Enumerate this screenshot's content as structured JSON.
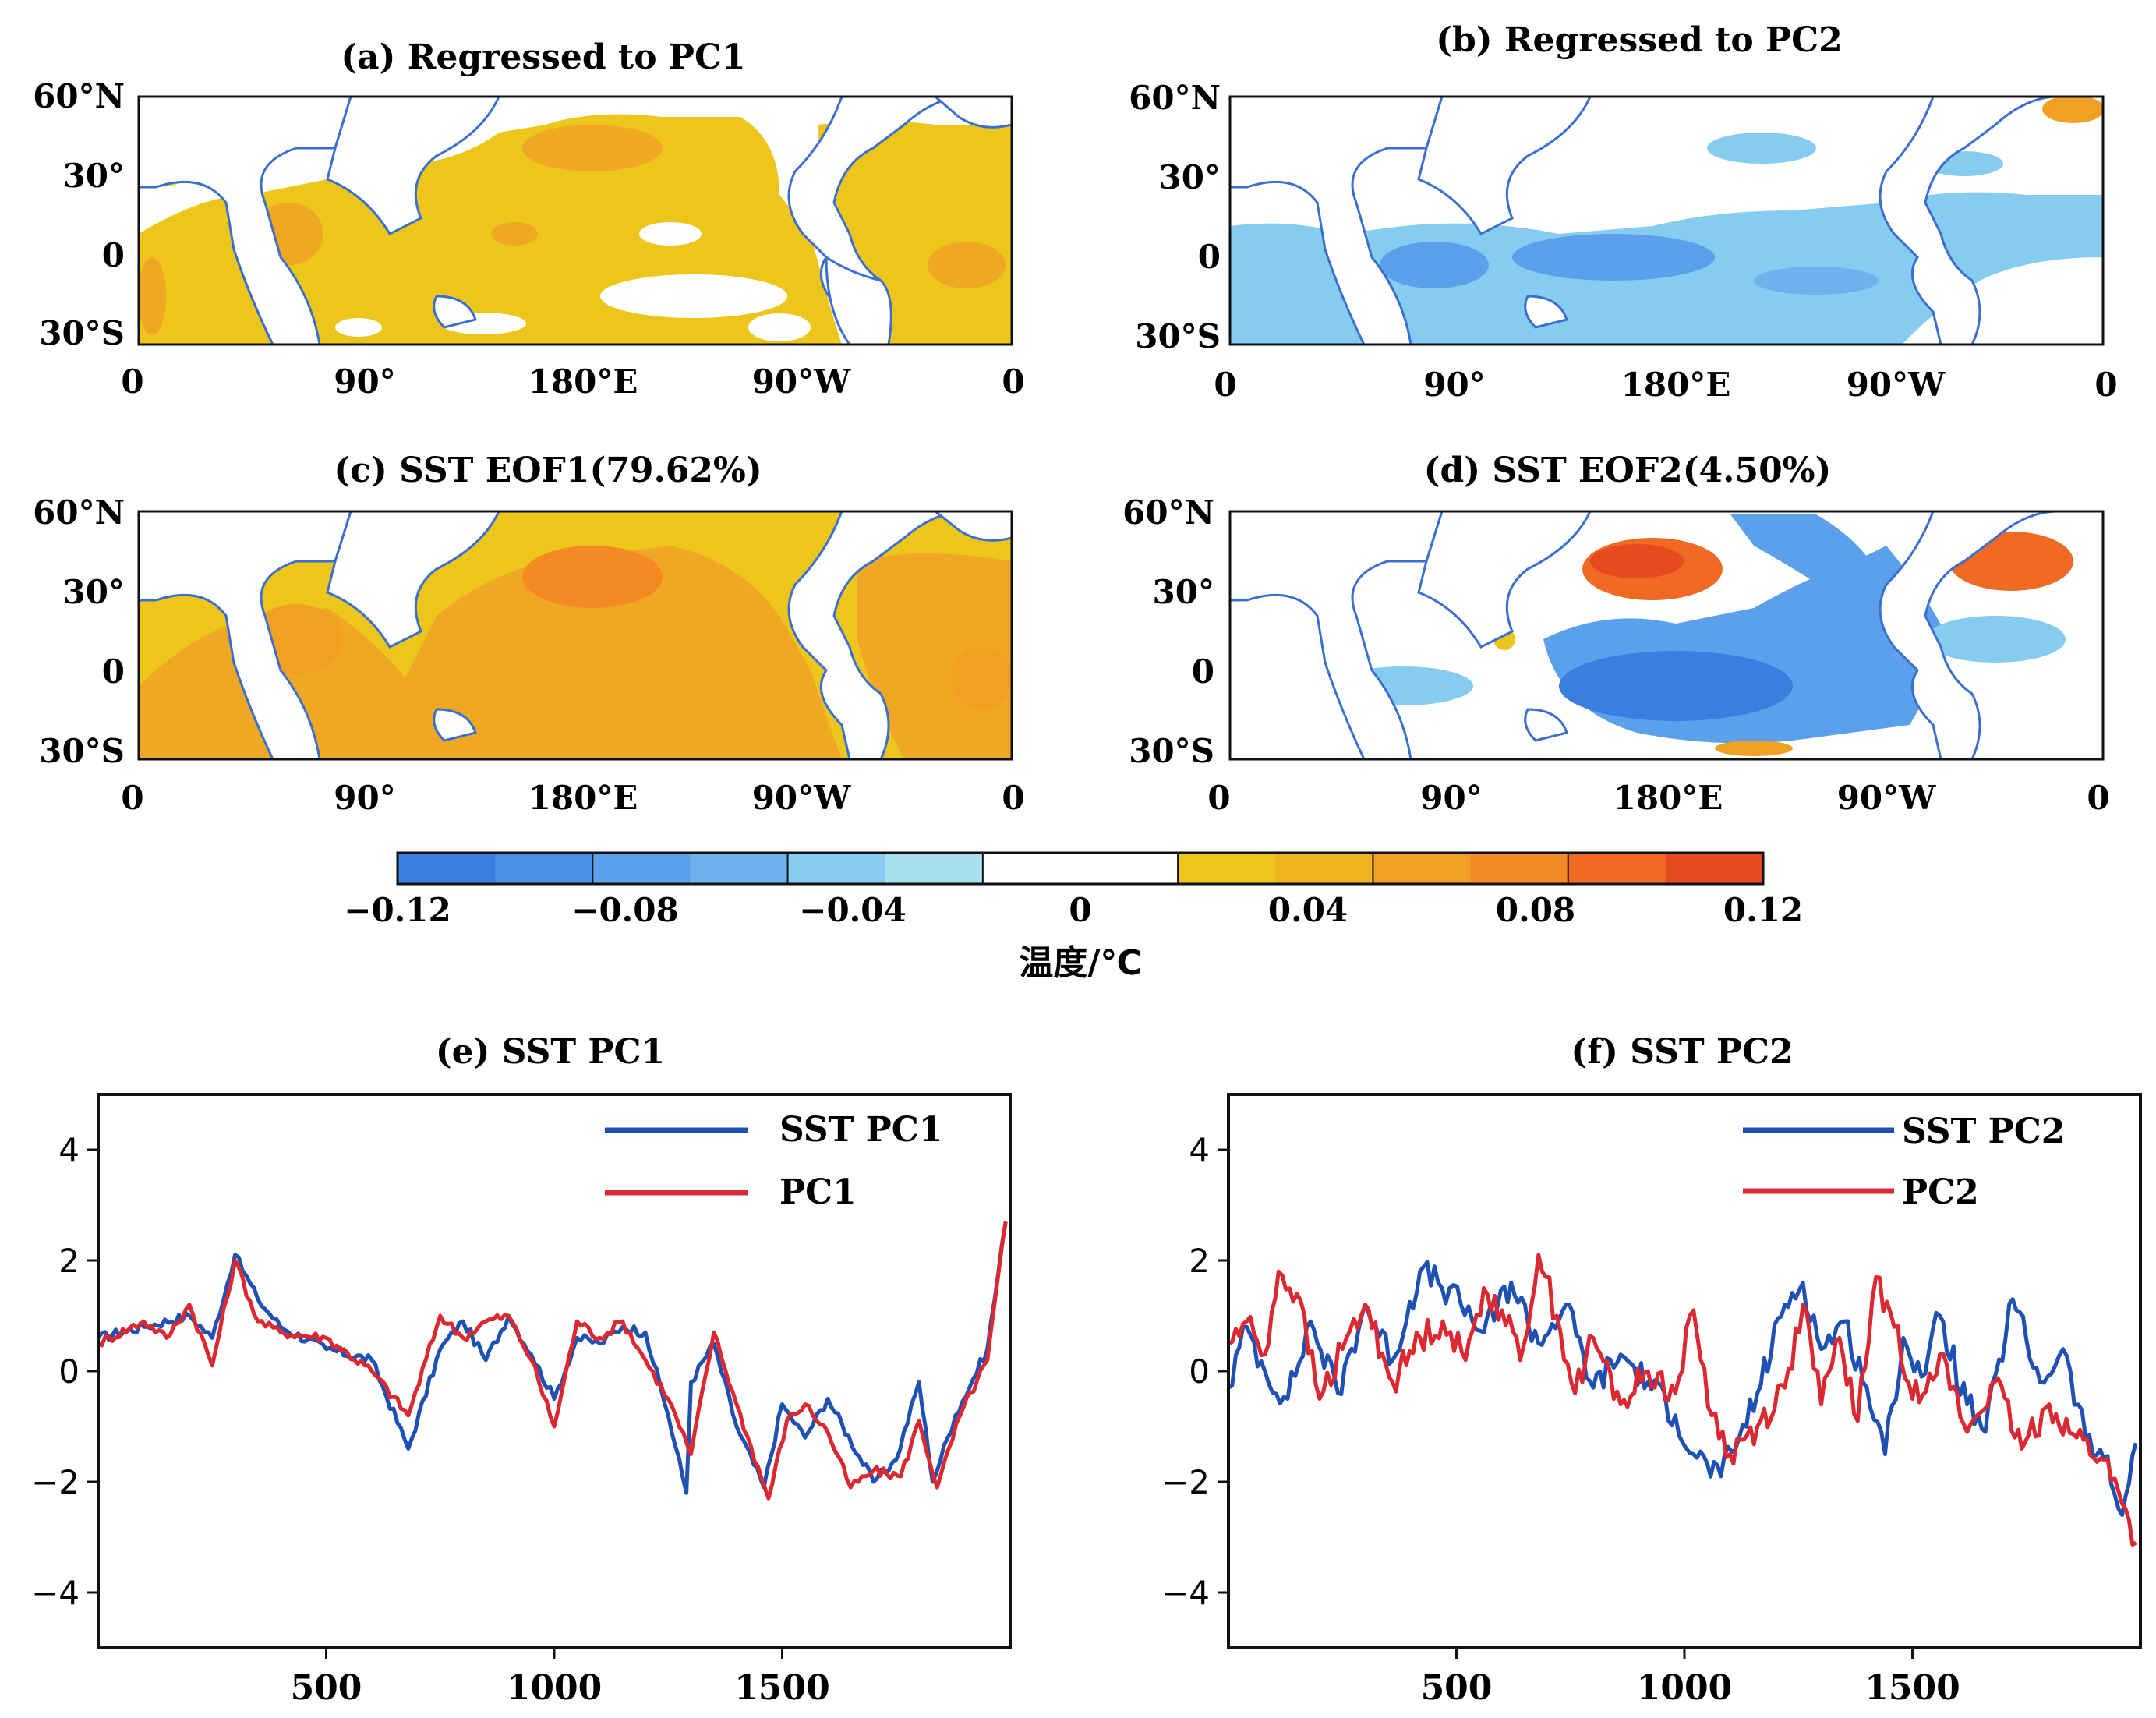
{
  "map_panels": [
    {
      "id": "a",
      "title": "(a) Regressed to PC1",
      "lat_labels": [
        "60°N",
        "30°",
        "0",
        "30°S"
      ],
      "lon_labels": [
        "0",
        "90°",
        "180°E",
        "90°W",
        "0"
      ],
      "pattern": "warm-uniform"
    },
    {
      "id": "b",
      "title": "(b) Regressed to PC2",
      "lat_labels": [
        "60°N",
        "30°",
        "0",
        "30°S"
      ],
      "lon_labels": [
        "0",
        "90°",
        "180°E",
        "90°W",
        "0"
      ],
      "pattern": "cool-equatorial"
    },
    {
      "id": "c",
      "title": "(c) SST EOF1(79.62%)",
      "lat_labels": [
        "60°N",
        "30°",
        "0",
        "30°S"
      ],
      "lon_labels": [
        "0",
        "90°",
        "180°E",
        "90°W",
        "0"
      ],
      "pattern": "warm-strong"
    },
    {
      "id": "d",
      "title": "(d) SST EOF2(4.50%)",
      "lat_labels": [
        "60°N",
        "30°",
        "0",
        "30°S"
      ],
      "lon_labels": [
        "0",
        "90°",
        "180°E",
        "90°W",
        "0"
      ],
      "pattern": "dipole"
    }
  ],
  "colorbar": {
    "tick_labels": [
      "−0.12",
      "−0.08",
      "−0.04",
      "0",
      "0.04",
      "0.08",
      "0.12"
    ],
    "label": "温度/℃",
    "colors": [
      "#3a7fe0",
      "#4a8ee6",
      "#5aa0ea",
      "#6cb2ee",
      "#86ccf0",
      "#a8e0f0",
      "#ffffff",
      "#ffffff",
      "#ecc61a",
      "#f0b21e",
      "#f2a024",
      "#f38a26",
      "#f06a24",
      "#e84a20"
    ]
  },
  "chart_data": [
    {
      "type": "line",
      "title": "(e) SST PC1",
      "xlim": [
        0,
        2000
      ],
      "ylim": [
        -5,
        5
      ],
      "xticks": [
        500,
        1000,
        1500
      ],
      "yticks": [
        4,
        2,
        0,
        -2,
        -4
      ],
      "series": [
        {
          "name": "SST PC1",
          "color": "#1f50b4",
          "x": [
            0,
            100,
            200,
            250,
            300,
            350,
            400,
            500,
            600,
            680,
            750,
            800,
            850,
            900,
            950,
            1000,
            1050,
            1100,
            1150,
            1200,
            1250,
            1290,
            1300,
            1350,
            1400,
            1460,
            1500,
            1550,
            1600,
            1700,
            1750,
            1800,
            1830,
            1880,
            1950,
            1990
          ],
          "values": [
            0.6,
            0.8,
            1.0,
            0.6,
            2.1,
            1.3,
            0.8,
            0.4,
            0.2,
            -1.4,
            0.4,
            0.9,
            0.2,
            1.0,
            0.3,
            -0.5,
            0.6,
            0.5,
            0.8,
            0.7,
            -0.8,
            -2.2,
            -0.2,
            0.5,
            -1.0,
            -2.1,
            -0.6,
            -1.2,
            -0.5,
            -2.0,
            -1.6,
            -0.2,
            -2.0,
            -0.8,
            0.4,
            2.7
          ]
        },
        {
          "name": "PC1",
          "color": "#dc2830",
          "x": [
            0,
            100,
            150,
            200,
            250,
            300,
            350,
            400,
            500,
            600,
            680,
            750,
            800,
            850,
            900,
            950,
            1000,
            1050,
            1100,
            1150,
            1200,
            1250,
            1300,
            1350,
            1400,
            1470,
            1510,
            1550,
            1600,
            1650,
            1700,
            1760,
            1800,
            1840,
            1890,
            1950,
            1990
          ],
          "values": [
            0.5,
            0.9,
            0.6,
            1.2,
            0.1,
            2.0,
            0.9,
            0.7,
            0.6,
            0.0,
            -0.8,
            1.0,
            0.6,
            0.9,
            1.0,
            0.2,
            -1.0,
            0.9,
            0.6,
            0.9,
            0.2,
            -0.5,
            -1.5,
            0.7,
            -0.6,
            -2.3,
            -0.9,
            -0.6,
            -1.1,
            -2.1,
            -1.8,
            -1.9,
            -0.9,
            -2.1,
            -0.8,
            0.2,
            2.7
          ]
        }
      ],
      "legend": [
        "SST PC1",
        "PC1"
      ]
    },
    {
      "type": "line",
      "title": "(f) SST PC2",
      "xlim": [
        0,
        2000
      ],
      "ylim": [
        -5,
        5
      ],
      "xticks": [
        500,
        1000,
        1500
      ],
      "yticks": [
        4,
        2,
        0,
        -2,
        -4
      ],
      "series": [
        {
          "name": "SST PC2",
          "color": "#1f50b4",
          "x": [
            0,
            40,
            80,
            130,
            180,
            240,
            300,
            360,
            420,
            460,
            510,
            560,
            620,
            680,
            740,
            800,
            860,
            920,
            980,
            1020,
            1080,
            1120,
            1160,
            1220,
            1260,
            1300,
            1350,
            1400,
            1440,
            1480,
            1520,
            1560,
            1620,
            1660,
            1720,
            1780,
            1830,
            1880,
            1920,
            1960,
            1990
          ],
          "values": [
            -0.3,
            0.8,
            0.0,
            -0.5,
            0.9,
            -0.4,
            1.2,
            0.2,
            1.8,
            1.6,
            1.2,
            0.7,
            1.6,
            0.5,
            1.2,
            -0.3,
            0.3,
            -0.2,
            -0.8,
            -1.5,
            -1.9,
            -1.2,
            -0.4,
            1.2,
            1.6,
            0.4,
            0.9,
            -0.3,
            -1.5,
            0.6,
            -0.1,
            1.0,
            -0.6,
            -1.1,
            1.3,
            -0.2,
            0.4,
            -1.2,
            -1.6,
            -2.6,
            -1.3
          ]
        },
        {
          "name": "PC2",
          "color": "#dc2830",
          "x": [
            0,
            40,
            80,
            110,
            150,
            200,
            250,
            300,
            360,
            420,
            470,
            520,
            560,
            600,
            640,
            680,
            720,
            760,
            800,
            860,
            920,
            980,
            1020,
            1060,
            1100,
            1160,
            1220,
            1260,
            1300,
            1340,
            1380,
            1420,
            1460,
            1500,
            1560,
            1620,
            1680,
            1740,
            1800,
            1860,
            1920,
            1960,
            1990
          ],
          "values": [
            0.5,
            0.9,
            0.3,
            1.8,
            1.4,
            -0.5,
            0.4,
            1.2,
            -0.2,
            0.6,
            0.9,
            0.2,
            1.5,
            1.1,
            0.2,
            2.1,
            1.0,
            -0.4,
            0.6,
            -0.6,
            0.0,
            -0.4,
            1.1,
            -0.8,
            -1.5,
            -1.0,
            -0.3,
            1.2,
            -0.6,
            0.6,
            -0.9,
            1.7,
            0.8,
            -0.5,
            0.3,
            -1.1,
            -0.2,
            -1.4,
            -0.6,
            -1.2,
            -1.6,
            -2.4,
            -3.1
          ]
        }
      ],
      "legend": [
        "SST PC2",
        "PC2"
      ]
    }
  ]
}
